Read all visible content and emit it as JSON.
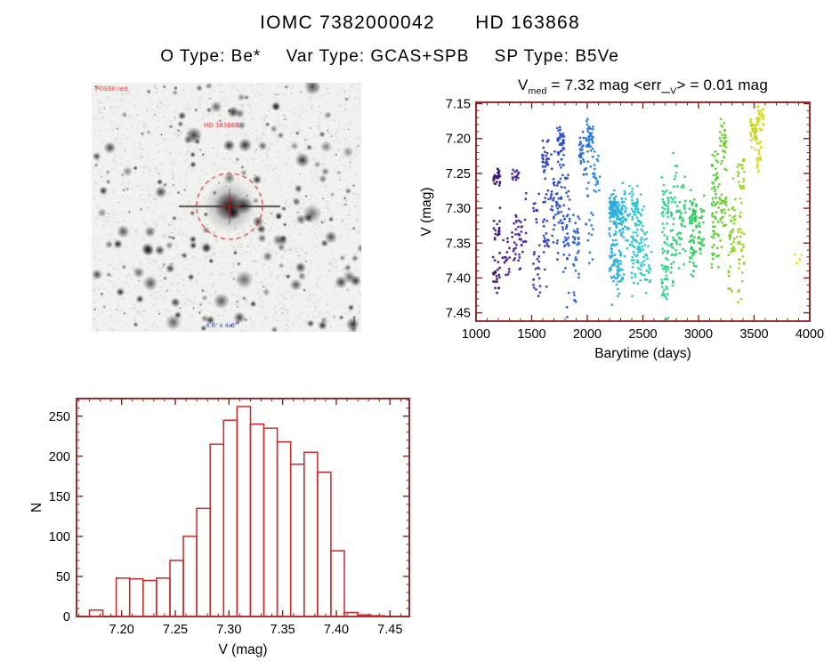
{
  "page": {
    "background": "#ffffff",
    "title": {
      "left": "IOMC 7382000042",
      "right": "HD 163868"
    },
    "subtitle": {
      "otype": "O Type: Be*",
      "vartype": "Var Type: GCAS+SPB",
      "sptype": "SP Type: B5Ve"
    }
  },
  "finder": {
    "corner_label": "POSSII red",
    "annotation_red": "HD 163868",
    "annotation_blue": "4.6' x 4.6'",
    "circle_color": "#dd2222",
    "annotation_red_color": "#dd2222",
    "annotation_blue_color": "#2244bb"
  },
  "chart_data": [
    {
      "type": "scatter",
      "name": "lightcurve",
      "title": "V_med = 7.32 mag <err_V> = 0.01 mag",
      "title_parts": [
        "V",
        "med",
        " = 7.32 mag <err_",
        "V",
        "> = 0.01 mag"
      ],
      "xlabel": "Barytime (days)",
      "ylabel": "V (mag)",
      "xlim": [
        1000,
        4000
      ],
      "ylim_top_bottom": [
        7.148,
        7.462
      ],
      "y_axis_inverted": true,
      "xticks": [
        1000,
        1500,
        2000,
        2500,
        3000,
        3500,
        4000
      ],
      "yticks": [
        7.15,
        7.2,
        7.25,
        7.3,
        7.35,
        7.4,
        7.45
      ],
      "frame_color": "#8b1c1c",
      "colormap": [
        [
          1000,
          "#33095e"
        ],
        [
          1350,
          "#46209a"
        ],
        [
          1650,
          "#2b3ec4"
        ],
        [
          1950,
          "#2f6ad4"
        ],
        [
          2200,
          "#29a8e0"
        ],
        [
          2450,
          "#2cc8d4"
        ],
        [
          2700,
          "#2bd08a"
        ],
        [
          2950,
          "#2ecc5c"
        ],
        [
          3200,
          "#63cc30"
        ],
        [
          3400,
          "#a2d427"
        ],
        [
          3600,
          "#e8dc2a"
        ],
        [
          4000,
          "#f0e040"
        ]
      ],
      "clusters": [
        {
          "x": 1185,
          "groups": [
            [
              7.252,
              0.006,
              28
            ],
            [
              7.33,
              0.018,
              18
            ],
            [
              7.395,
              0.015,
              20
            ]
          ]
        },
        {
          "x": 1270,
          "groups": [
            [
              7.37,
              0.02,
              16
            ]
          ]
        },
        {
          "x": 1355,
          "groups": [
            [
              7.253,
              0.006,
              14
            ],
            [
              7.345,
              0.025,
              22
            ]
          ]
        },
        {
          "x": 1420,
          "groups": [
            [
              7.33,
              0.028,
              22
            ]
          ]
        },
        {
          "x": 1545,
          "groups": [
            [
              7.3,
              0.01,
              10
            ],
            [
              7.385,
              0.022,
              20
            ]
          ]
        },
        {
          "x": 1625,
          "groups": [
            [
              7.228,
              0.012,
              22
            ],
            [
              7.33,
              0.035,
              28
            ]
          ]
        },
        {
          "x": 1705,
          "groups": [
            [
              7.3,
              0.045,
              30
            ]
          ]
        },
        {
          "x": 1760,
          "groups": [
            [
              7.205,
              0.015,
              45
            ],
            [
              7.295,
              0.025,
              30
            ]
          ]
        },
        {
          "x": 1810,
          "groups": [
            [
              7.33,
              0.04,
              40
            ]
          ]
        },
        {
          "x": 1900,
          "groups": [
            [
              7.36,
              0.035,
              35
            ]
          ]
        },
        {
          "x": 1955,
          "groups": [
            [
              7.225,
              0.018,
              30
            ]
          ]
        },
        {
          "x": 2020,
          "groups": [
            [
              7.2,
              0.012,
              40
            ],
            [
              7.3,
              0.035,
              22
            ]
          ]
        },
        {
          "x": 2085,
          "groups": [
            [
              7.25,
              0.018,
              20
            ]
          ]
        },
        {
          "x": 2230,
          "groups": [
            [
              7.3,
              0.01,
              70
            ],
            [
              7.36,
              0.025,
              45
            ]
          ]
        },
        {
          "x": 2290,
          "groups": [
            [
              7.31,
              0.018,
              55
            ],
            [
              7.39,
              0.018,
              35
            ]
          ]
        },
        {
          "x": 2355,
          "groups": [
            [
              7.33,
              0.03,
              30
            ]
          ]
        },
        {
          "x": 2430,
          "groups": [
            [
              7.3,
              0.014,
              45
            ],
            [
              7.37,
              0.028,
              35
            ]
          ]
        },
        {
          "x": 2490,
          "groups": [
            [
              7.35,
              0.035,
              38
            ]
          ]
        },
        {
          "x": 2545,
          "groups": [
            [
              7.38,
              0.025,
              22
            ]
          ]
        },
        {
          "x": 2700,
          "groups": [
            [
              7.3,
              0.018,
              30
            ],
            [
              7.39,
              0.035,
              45
            ]
          ]
        },
        {
          "x": 2780,
          "groups": [
            [
              7.33,
              0.045,
              48
            ]
          ]
        },
        {
          "x": 2855,
          "groups": [
            [
              7.32,
              0.028,
              32
            ]
          ]
        },
        {
          "x": 2950,
          "groups": [
            [
              7.31,
              0.015,
              38
            ],
            [
              7.36,
              0.018,
              28
            ]
          ]
        },
        {
          "x": 3020,
          "groups": [
            [
              7.33,
              0.022,
              30
            ]
          ]
        },
        {
          "x": 3150,
          "groups": [
            [
              7.25,
              0.018,
              26
            ],
            [
              7.33,
              0.035,
              42
            ]
          ]
        },
        {
          "x": 3220,
          "groups": [
            [
              7.205,
              0.014,
              32
            ],
            [
              7.3,
              0.028,
              30
            ]
          ]
        },
        {
          "x": 3300,
          "groups": [
            [
              7.33,
              0.038,
              42
            ]
          ]
        },
        {
          "x": 3380,
          "groups": [
            [
              7.25,
              0.018,
              26
            ],
            [
              7.36,
              0.028,
              32
            ]
          ]
        },
        {
          "x": 3495,
          "groups": [
            [
              7.19,
              0.01,
              42
            ]
          ]
        },
        {
          "x": 3555,
          "groups": [
            [
              7.172,
              0.008,
              32
            ],
            [
              7.225,
              0.012,
              22
            ]
          ]
        },
        {
          "x": 3900,
          "groups": [
            [
              7.372,
              0.006,
              7
            ]
          ]
        }
      ]
    },
    {
      "type": "bar",
      "name": "histogram",
      "xlabel": "V (mag)",
      "ylabel": "N",
      "bin_start": 7.17,
      "bin_width": 0.0125,
      "counts": [
        8,
        0,
        48,
        47,
        45,
        48,
        70,
        100,
        135,
        215,
        245,
        262,
        240,
        235,
        218,
        190,
        205,
        180,
        82,
        5,
        2,
        1
      ],
      "xlim": [
        7.158,
        7.468
      ],
      "ylim": [
        0,
        272
      ],
      "xticks": [
        7.2,
        7.25,
        7.3,
        7.35,
        7.4,
        7.45
      ],
      "yticks": [
        0,
        50,
        100,
        150,
        200,
        250
      ],
      "bar_color": "#cd2626",
      "frame_color": "#8b1c1c"
    }
  ]
}
